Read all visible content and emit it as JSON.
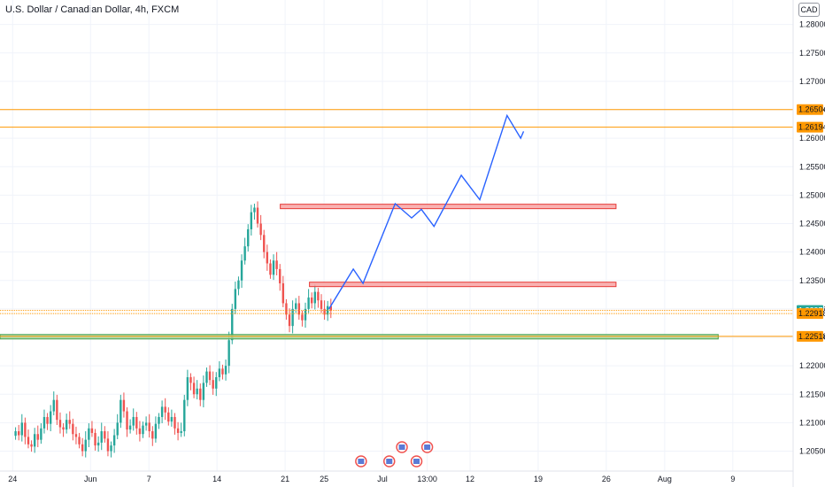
{
  "header": {
    "title": "U.S. Dollar / Canadian Dollar, 4h, FXCM",
    "currency": "CAD"
  },
  "colors": {
    "up": "#26a69a",
    "down": "#ef5350",
    "resistance_line": "#ff9800",
    "zone_red_fill": "#f8a5a5",
    "zone_red_border": "#e53935",
    "zone_green_fill": "#a5d6a7",
    "zone_green_border": "#43a047",
    "projection": "#2962ff",
    "current_price_bg": "#26a69a",
    "grid": "#f0f3fa"
  },
  "chart_data": {
    "type": "candlestick",
    "title": "U.S. Dollar / Canadian Dollar, 4h, FXCM",
    "xlabel": "",
    "ylabel": "",
    "ylim": [
      1.2015,
      1.2843
    ],
    "grid": true,
    "y_ticks": [
      "1.28000",
      "1.27500",
      "1.27000",
      "1.26500",
      "1.26000",
      "1.25500",
      "1.25000",
      "1.24500",
      "1.24000",
      "1.23500",
      "1.23000",
      "1.22500",
      "1.22000",
      "1.21500",
      "1.21000",
      "1.20500"
    ],
    "x_ticks": [
      {
        "label": "24",
        "t": 0
      },
      {
        "label": "Jun",
        "t": 8
      },
      {
        "label": "7",
        "t": 14
      },
      {
        "label": "14",
        "t": 21
      },
      {
        "label": "21",
        "t": 28
      },
      {
        "label": "25",
        "t": 32
      },
      {
        "label": "Jul",
        "t": 38
      },
      {
        "label": "13:00",
        "t": 42.6
      },
      {
        "label": "12",
        "t": 47
      },
      {
        "label": "19",
        "t": 54
      },
      {
        "label": "26",
        "t": 61
      },
      {
        "label": "Aug",
        "t": 67
      },
      {
        "label": "9",
        "t": 74
      }
    ],
    "time_range": [
      -1.3,
      80.2
    ],
    "time_axis_note": "days from May 24",
    "closes": [
      1.2085,
      1.2078,
      1.21,
      1.2075,
      1.2062,
      1.2058,
      1.208,
      1.207,
      1.209,
      1.211,
      1.2098,
      1.212,
      1.214,
      1.2105,
      1.2092,
      1.2088,
      1.2105,
      1.2098,
      1.208,
      1.2075,
      1.2062,
      1.205,
      1.207,
      1.209,
      1.2082,
      1.206,
      1.2065,
      1.2085,
      1.2072,
      1.205,
      1.206,
      1.2078,
      1.21,
      1.214,
      1.212,
      1.2088,
      1.2095,
      1.211,
      1.209,
      1.208,
      1.2095,
      1.21,
      1.2085,
      1.2072,
      1.2098,
      1.211,
      1.2128,
      1.2118,
      1.2102,
      1.211,
      1.209,
      1.2082,
      1.2085,
      1.214,
      1.218,
      1.217,
      1.215,
      1.216,
      1.214,
      1.217,
      1.219,
      1.2175,
      1.216,
      1.218,
      1.2195,
      1.2185,
      1.22,
      1.2245,
      1.23,
      1.2335,
      1.235,
      1.2385,
      1.241,
      1.244,
      1.247,
      1.2478,
      1.245,
      1.243,
      1.24,
      1.238,
      1.236,
      1.2385,
      1.237,
      1.2345,
      1.231,
      1.229,
      1.227,
      1.23,
      1.231,
      1.229,
      1.228,
      1.23,
      1.232,
      1.231,
      1.233,
      1.2315,
      1.23,
      1.229,
      1.2305,
      1.2297
    ],
    "ohlc_note": "closes only, approximate; 100 candles at 4h",
    "levels": [
      {
        "label": "1.26504",
        "price": 1.26504
      },
      {
        "label": "1.26194",
        "price": 1.26194
      },
      {
        "label": "1.22972",
        "price": 1.22972
      },
      {
        "label": "1.22918",
        "price": 1.22918
      },
      {
        "label": "1.22518",
        "price": 1.22518
      }
    ],
    "current_price": "1.22972",
    "zones": [
      {
        "type": "resistance",
        "top": 1.2484,
        "bottom": 1.2478,
        "t_start": 27.5,
        "t_end": 62
      },
      {
        "type": "support",
        "top": 1.2347,
        "bottom": 1.2341,
        "t_start": 30.5,
        "t_end": 62
      },
      {
        "type": "support",
        "top": 1.2255,
        "bottom": 1.2248,
        "t_start": -1.3,
        "t_end": 72.5
      }
    ],
    "projection": [
      {
        "t": 32.5,
        "p": 1.23
      },
      {
        "t": 35,
        "p": 1.237
      },
      {
        "t": 36,
        "p": 1.2345
      },
      {
        "t": 39.3,
        "p": 1.2485
      },
      {
        "t": 41,
        "p": 1.246
      },
      {
        "t": 42,
        "p": 1.2475
      },
      {
        "t": 43.3,
        "p": 1.2445
      },
      {
        "t": 46.1,
        "p": 1.2535
      },
      {
        "t": 48,
        "p": 1.2492
      },
      {
        "t": 50.8,
        "p": 1.264
      },
      {
        "t": 52.2,
        "p": 1.26
      },
      {
        "t": 52.5,
        "p": 1.2612
      }
    ],
    "events_note": "economic-event flag icons near bottom around Jul 1"
  }
}
